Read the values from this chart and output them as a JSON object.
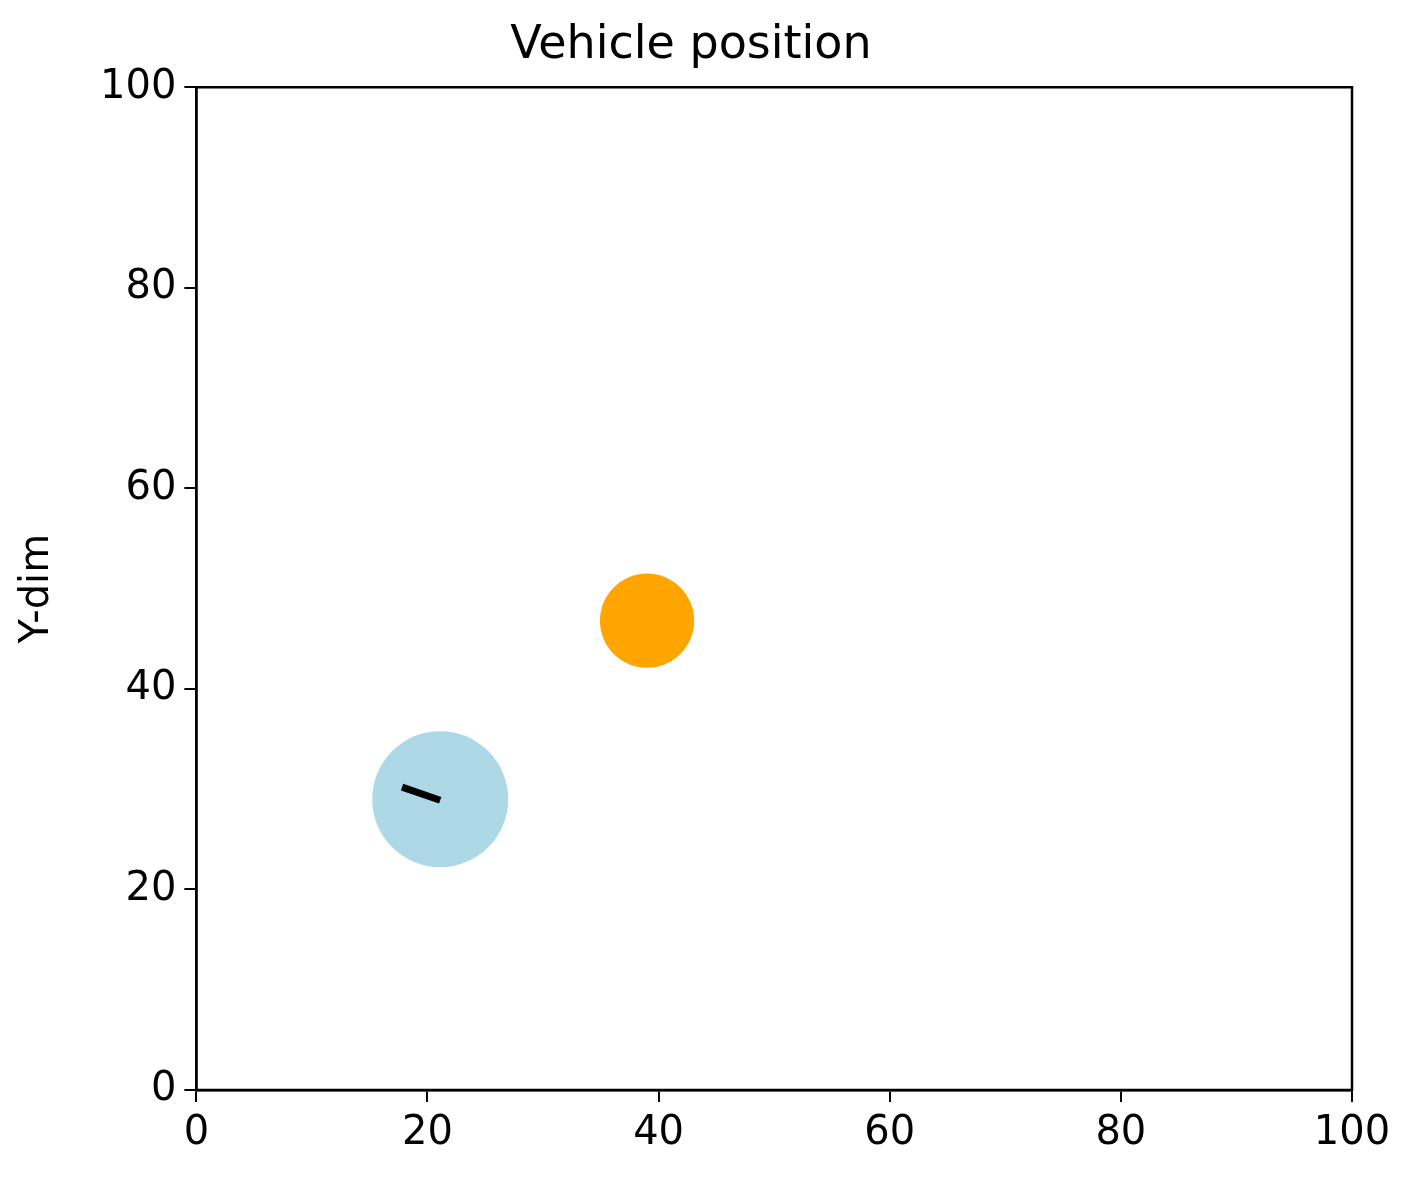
{
  "chart_data": {
    "type": "bubble",
    "title": "Vehicle position",
    "ylabel": "Y-dim",
    "xlim": [
      0,
      100
    ],
    "ylim": [
      0,
      100
    ],
    "xticks": [
      0,
      20,
      40,
      60,
      80,
      100
    ],
    "yticks": [
      0,
      20,
      40,
      60,
      80,
      100
    ],
    "grid": false,
    "legend": false,
    "series": [
      {
        "color": "#add8e6",
        "x": [
          21.1
        ],
        "values": [
          29
        ],
        "sizes": [
          1
        ]
      },
      {
        "color": "#ffa500",
        "x": [
          39
        ],
        "values": [
          46.8
        ],
        "sizes": [
          0.48
        ]
      },
      {
        "type": "line",
        "color": "#000000",
        "x": [
          17.8,
          21.1
        ],
        "values": [
          30.2,
          28.9
        ]
      }
    ]
  }
}
